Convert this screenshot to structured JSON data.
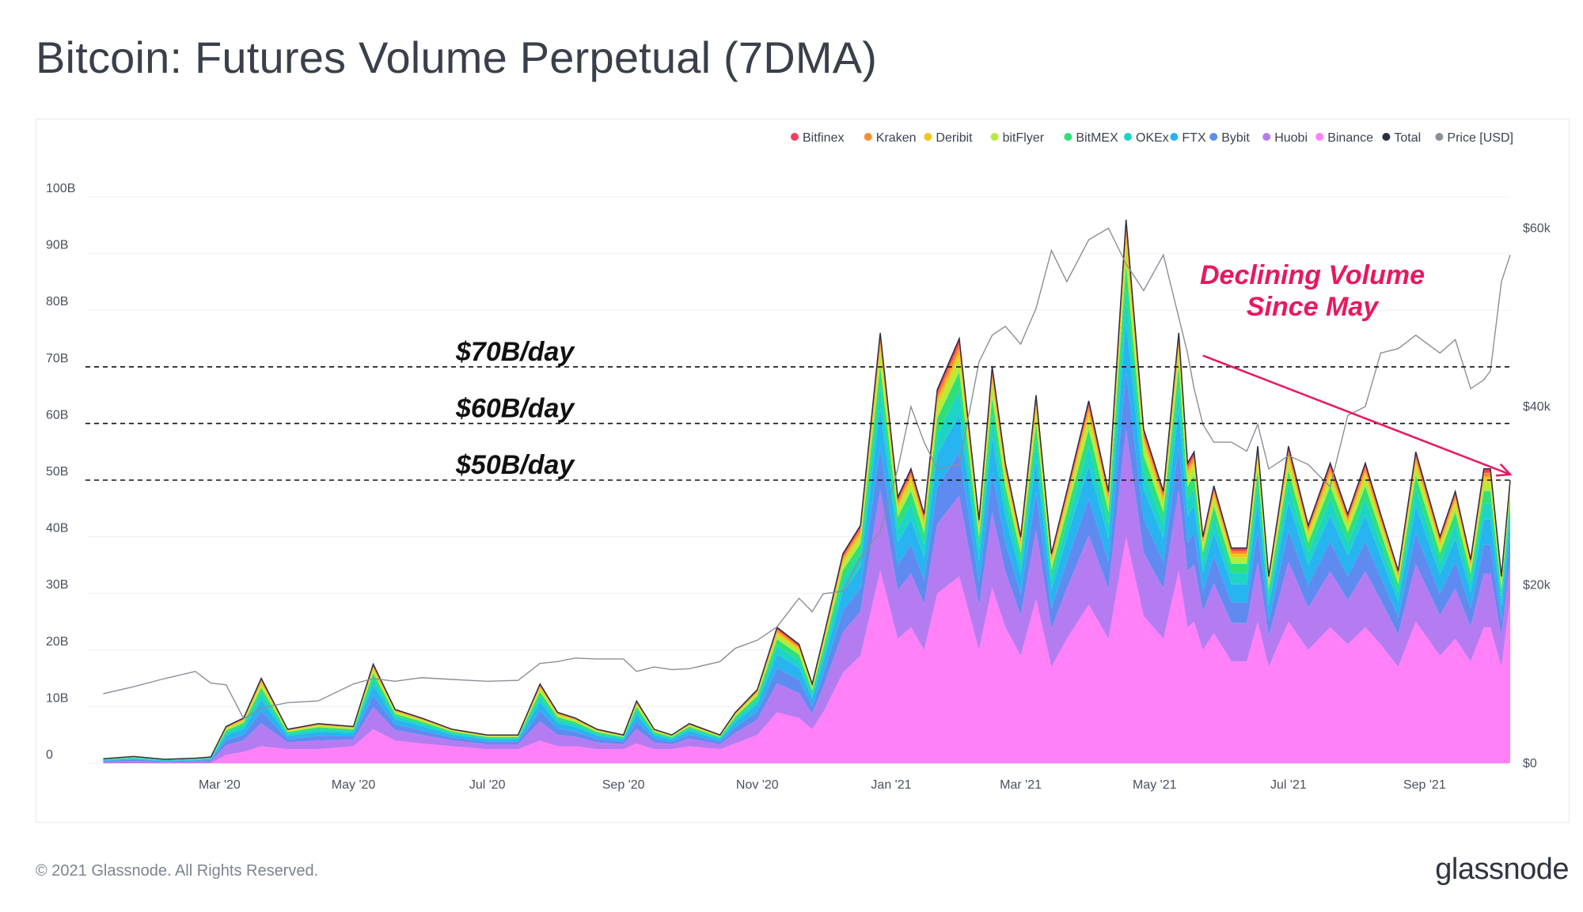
{
  "title": "Bitcoin: Futures Volume Perpetual (7DMA)",
  "footer": "© 2021 Glassnode. All Rights Reserved.",
  "brand": "glassnode",
  "chart_data": {
    "type": "area",
    "stacked": true,
    "title": "Bitcoin: Futures Volume Perpetual (7DMA)",
    "x_dates": [
      "2020-01-08",
      "2020-01-22",
      "2020-02-05",
      "2020-02-19",
      "2020-02-26",
      "2020-03-04",
      "2020-03-12",
      "2020-03-20",
      "2020-04-01",
      "2020-04-15",
      "2020-05-01",
      "2020-05-10",
      "2020-05-20",
      "2020-06-01",
      "2020-06-15",
      "2020-07-01",
      "2020-07-15",
      "2020-07-25",
      "2020-08-02",
      "2020-08-10",
      "2020-08-20",
      "2020-09-01",
      "2020-09-07",
      "2020-09-15",
      "2020-09-23",
      "2020-10-01",
      "2020-10-15",
      "2020-10-22",
      "2020-11-01",
      "2020-11-10",
      "2020-11-20",
      "2020-11-26",
      "2020-12-01",
      "2020-12-10",
      "2020-12-18",
      "2020-12-27",
      "2021-01-04",
      "2021-01-10",
      "2021-01-16",
      "2021-01-22",
      "2021-02-01",
      "2021-02-10",
      "2021-02-16",
      "2021-02-22",
      "2021-03-01",
      "2021-03-08",
      "2021-03-15",
      "2021-03-22",
      "2021-04-01",
      "2021-04-10",
      "2021-04-18",
      "2021-04-26",
      "2021-05-05",
      "2021-05-12",
      "2021-05-16",
      "2021-05-19",
      "2021-05-23",
      "2021-05-28",
      "2021-06-05",
      "2021-06-12",
      "2021-06-17",
      "2021-06-22",
      "2021-07-01",
      "2021-07-10",
      "2021-07-20",
      "2021-07-28",
      "2021-08-05",
      "2021-08-12",
      "2021-08-20",
      "2021-08-28",
      "2021-09-08",
      "2021-09-15",
      "2021-09-22",
      "2021-09-28",
      "2021-10-01",
      "2021-10-06",
      "2021-10-10"
    ],
    "total_usd_billion": [
      0.8,
      1.2,
      0.7,
      0.9,
      1.1,
      6.5,
      8,
      15,
      6,
      7,
      6.5,
      17.5,
      9.5,
      8,
      6,
      5,
      5,
      14,
      9,
      8,
      6,
      5,
      11,
      6,
      5,
      7,
      5,
      9,
      13,
      24,
      21,
      14,
      22,
      37,
      42,
      76,
      47,
      52,
      44,
      66,
      75,
      43,
      70,
      53,
      40,
      65,
      37,
      48,
      64,
      48,
      96,
      59,
      48,
      76,
      53,
      55,
      40,
      49,
      38,
      38,
      56,
      33,
      56,
      42,
      53,
      44,
      53,
      44,
      34,
      55,
      40,
      48,
      36,
      52,
      52,
      33,
      50
    ],
    "binance_usd_billion": [
      0,
      0,
      0,
      0,
      0,
      1.5,
      2,
      3,
      2.5,
      2.5,
      3,
      6,
      4,
      3.5,
      3,
      2.5,
      2.5,
      4,
      3,
      3,
      2.5,
      2.5,
      3.5,
      2.5,
      2.5,
      3,
      2.5,
      3.5,
      5,
      9,
      8,
      6,
      9,
      16,
      19,
      34,
      22,
      24,
      20,
      30,
      33,
      20,
      31,
      24,
      19,
      29,
      17,
      22,
      28,
      22,
      40,
      26,
      22,
      34,
      24,
      25,
      20,
      23,
      18,
      18,
      25,
      17,
      25,
      20,
      24,
      21,
      24,
      21,
      17,
      25,
      19,
      22,
      18,
      24,
      24,
      17,
      29
    ],
    "price_usd": [
      7800,
      8600,
      9500,
      10300,
      9000,
      8800,
      5000,
      6200,
      6800,
      7000,
      8900,
      9500,
      9200,
      9600,
      9400,
      9200,
      9300,
      11200,
      11400,
      11800,
      11700,
      11700,
      10300,
      10800,
      10500,
      10600,
      11400,
      12900,
      13800,
      15300,
      18500,
      17000,
      19000,
      19300,
      23000,
      26000,
      33000,
      40000,
      36000,
      33000,
      33500,
      45000,
      48000,
      49000,
      47000,
      51000,
      57500,
      54000,
      58700,
      60000,
      56000,
      53000,
      57000,
      50000,
      46000,
      42000,
      38000,
      36000,
      36000,
      35000,
      38000,
      33000,
      34500,
      33500,
      31000,
      39000,
      40000,
      46000,
      46500,
      48000,
      46000,
      47500,
      42000,
      43000,
      44000,
      54000,
      57000
    ],
    "series": [
      {
        "name": "Bitfinex",
        "color": "#f03e5c"
      },
      {
        "name": "Kraken",
        "color": "#fb8c2e"
      },
      {
        "name": "Deribit",
        "color": "#f5c517"
      },
      {
        "name": "bitFlyer",
        "color": "#b5ec3b"
      },
      {
        "name": "BitMEX",
        "color": "#2ee07a"
      },
      {
        "name": "OKEx",
        "color": "#1ed4c6"
      },
      {
        "name": "FTX",
        "color": "#27b4f0"
      },
      {
        "name": "Bybit",
        "color": "#5f8bf0"
      },
      {
        "name": "Huobi",
        "color": "#b57cf2"
      },
      {
        "name": "Binance",
        "color": "#ff80f7"
      },
      {
        "name": "Total",
        "color": "#2b3040"
      },
      {
        "name": "Price [USD]",
        "color": "#8a8f99"
      }
    ],
    "y_ticks_left": [
      "0",
      "10B",
      "20B",
      "30B",
      "40B",
      "50B",
      "60B",
      "70B",
      "80B",
      "90B",
      "100B"
    ],
    "y_ticks_right": [
      "$0",
      "$20k",
      "$40k",
      "$60k"
    ],
    "x_ticks": [
      {
        "label": "Mar '20",
        "date": "2020-03-01"
      },
      {
        "label": "May '20",
        "date": "2020-05-01"
      },
      {
        "label": "Jul '20",
        "date": "2020-07-01"
      },
      {
        "label": "Sep '20",
        "date": "2020-09-01"
      },
      {
        "label": "Nov '20",
        "date": "2020-11-01"
      },
      {
        "label": "Jan '21",
        "date": "2021-01-01"
      },
      {
        "label": "Mar '21",
        "date": "2021-03-01"
      },
      {
        "label": "May '21",
        "date": "2021-05-01"
      },
      {
        "label": "Jul '21",
        "date": "2021-07-01"
      },
      {
        "label": "Sep '21",
        "date": "2021-09-01"
      }
    ],
    "ylim": [
      0,
      100
    ],
    "ylim_right": [
      0,
      63500
    ],
    "reference_lines": [
      {
        "value": 70,
        "label": "$70B/day"
      },
      {
        "value": 60,
        "label": "$60B/day"
      },
      {
        "value": 50,
        "label": "$50B/day"
      }
    ],
    "annotation": {
      "lines": [
        "Declining Volume",
        "Since May"
      ],
      "arrow_from": {
        "date": "2021-05-23",
        "value": 72
      },
      "arrow_to": {
        "date": "2021-10-10",
        "value": 51
      }
    }
  }
}
